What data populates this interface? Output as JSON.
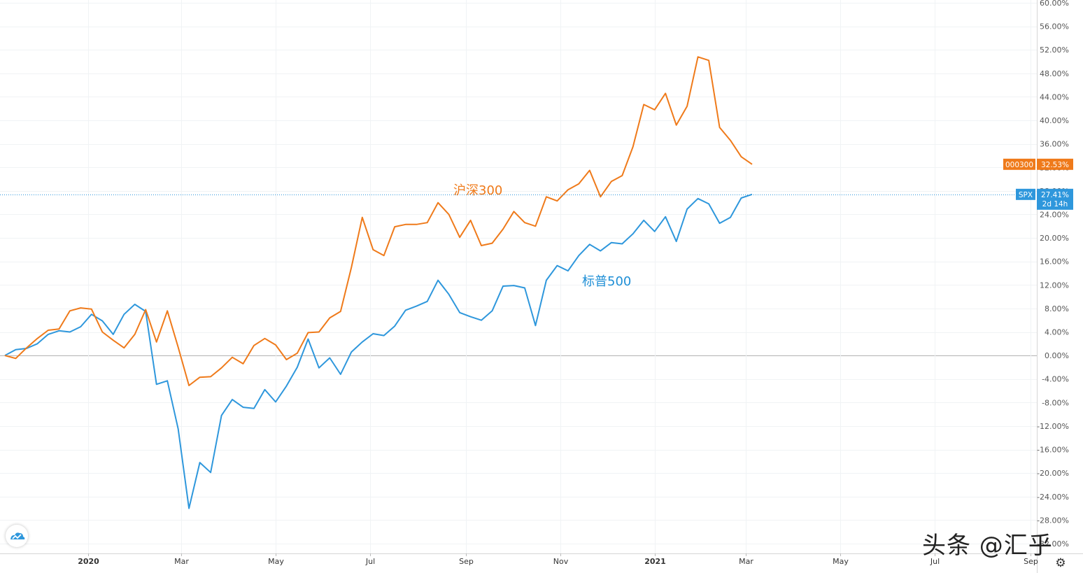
{
  "chart_data": {
    "type": "line",
    "ylim": [
      -30,
      60
    ],
    "yticks": [
      "60.00%",
      "56.00%",
      "52.00%",
      "48.00%",
      "44.00%",
      "40.00%",
      "36.00%",
      "32.00%",
      "28.00%",
      "24.00%",
      "20.00%",
      "16.00%",
      "12.00%",
      "8.00%",
      "4.00%",
      "0.00%",
      "-4.00%",
      "-8.00%",
      "-12.00%",
      "-16.00%",
      "-20.00%",
      "-24.00%",
      "-28.00%",
      "-32.00%"
    ],
    "ytick_values": [
      60,
      56,
      52,
      48,
      44,
      40,
      36,
      32,
      28,
      24,
      20,
      16,
      12,
      8,
      4,
      0,
      -4,
      -8,
      -12,
      -16,
      -20,
      -24,
      -28,
      -32
    ],
    "xticks": [
      {
        "label": "2020",
        "date": "2020-01-01",
        "bold": true
      },
      {
        "label": "Mar",
        "date": "2020-03-01",
        "bold": false
      },
      {
        "label": "May",
        "date": "2020-05-01",
        "bold": false
      },
      {
        "label": "Jul",
        "date": "2020-07-01",
        "bold": false
      },
      {
        "label": "Sep",
        "date": "2020-09-01",
        "bold": false
      },
      {
        "label": "Nov",
        "date": "2020-11-01",
        "bold": false
      },
      {
        "label": "2021",
        "date": "2021-01-01",
        "bold": true
      },
      {
        "label": "Mar",
        "date": "2021-03-01",
        "bold": false
      },
      {
        "label": "May",
        "date": "2021-05-01",
        "bold": false
      },
      {
        "label": "Jul",
        "date": "2021-07-01",
        "bold": false
      },
      {
        "label": "Sep",
        "date": "2021-09-01",
        "bold": false
      }
    ],
    "xrange": [
      "2019-11-08",
      "2021-09-15"
    ],
    "grid": true,
    "series": [
      {
        "name": "沪深300",
        "ticker": "000300",
        "last_value": "32.53%",
        "color": "#ef7a1a",
        "points": [
          [
            "2019-11-08",
            0
          ],
          [
            "2019-11-15",
            -0.5
          ],
          [
            "2019-11-22",
            1.3
          ],
          [
            "2019-11-29",
            2.9
          ],
          [
            "2019-12-06",
            4.3
          ],
          [
            "2019-12-13",
            4.5
          ],
          [
            "2019-12-20",
            7.6
          ],
          [
            "2019-12-27",
            8.1
          ],
          [
            "2020-01-03",
            7.9
          ],
          [
            "2020-01-10",
            4.0
          ],
          [
            "2020-01-17",
            2.6
          ],
          [
            "2020-01-24",
            1.3
          ],
          [
            "2020-01-31",
            3.6
          ],
          [
            "2020-02-07",
            7.8
          ],
          [
            "2020-02-14",
            2.3
          ],
          [
            "2020-02-21",
            7.6
          ],
          [
            "2020-02-28",
            1.4
          ],
          [
            "2020-03-06",
            -5.1
          ],
          [
            "2020-03-13",
            -3.7
          ],
          [
            "2020-03-20",
            -3.6
          ],
          [
            "2020-03-27",
            -2.1
          ],
          [
            "2020-04-03",
            -0.3
          ],
          [
            "2020-04-10",
            -1.4
          ],
          [
            "2020-04-17",
            1.7
          ],
          [
            "2020-04-24",
            2.9
          ],
          [
            "2020-05-01",
            1.8
          ],
          [
            "2020-05-08",
            -0.7
          ],
          [
            "2020-05-15",
            0.4
          ],
          [
            "2020-05-22",
            3.9
          ],
          [
            "2020-05-29",
            4.0
          ],
          [
            "2020-06-05",
            6.4
          ],
          [
            "2020-06-12",
            7.5
          ],
          [
            "2020-06-19",
            15.0
          ],
          [
            "2020-06-26",
            23.5
          ],
          [
            "2020-07-03",
            18.0
          ],
          [
            "2020-07-10",
            17.0
          ],
          [
            "2020-07-17",
            21.9
          ],
          [
            "2020-07-24",
            22.3
          ],
          [
            "2020-07-31",
            22.3
          ],
          [
            "2020-08-07",
            22.6
          ],
          [
            "2020-08-14",
            26.0
          ],
          [
            "2020-08-21",
            24.0
          ],
          [
            "2020-08-28",
            20.1
          ],
          [
            "2020-09-04",
            23.0
          ],
          [
            "2020-09-11",
            18.7
          ],
          [
            "2020-09-18",
            19.1
          ],
          [
            "2020-09-25",
            21.5
          ],
          [
            "2020-10-02",
            24.5
          ],
          [
            "2020-10-09",
            22.6
          ],
          [
            "2020-10-16",
            22.0
          ],
          [
            "2020-10-23",
            27.0
          ],
          [
            "2020-10-30",
            26.3
          ],
          [
            "2020-11-06",
            28.2
          ],
          [
            "2020-11-13",
            29.2
          ],
          [
            "2020-11-20",
            31.5
          ],
          [
            "2020-11-27",
            27.0
          ],
          [
            "2020-12-04",
            29.6
          ],
          [
            "2020-12-11",
            30.6
          ],
          [
            "2020-12-18",
            35.5
          ],
          [
            "2020-12-25",
            42.7
          ],
          [
            "2021-01-01",
            41.8
          ],
          [
            "2021-01-08",
            44.6
          ],
          [
            "2021-01-15",
            39.2
          ],
          [
            "2021-01-22",
            42.4
          ],
          [
            "2021-01-29",
            50.8
          ],
          [
            "2021-02-05",
            50.2
          ],
          [
            "2021-02-12",
            38.8
          ],
          [
            "2021-02-19",
            36.6
          ],
          [
            "2021-02-26",
            33.8
          ],
          [
            "2021-03-05",
            32.53
          ]
        ]
      },
      {
        "name": "标普500",
        "ticker": "SPX",
        "last_value": "27.41%",
        "time_left": "2d 14h",
        "color": "#2e97dc",
        "points": [
          [
            "2019-11-08",
            0
          ],
          [
            "2019-11-15",
            1.0
          ],
          [
            "2019-11-22",
            1.2
          ],
          [
            "2019-11-29",
            2.0
          ],
          [
            "2019-12-06",
            3.6
          ],
          [
            "2019-12-13",
            4.2
          ],
          [
            "2019-12-20",
            4.0
          ],
          [
            "2019-12-27",
            4.9
          ],
          [
            "2020-01-03",
            7.0
          ],
          [
            "2020-01-10",
            5.9
          ],
          [
            "2020-01-17",
            3.6
          ],
          [
            "2020-01-24",
            7.0
          ],
          [
            "2020-01-31",
            8.7
          ],
          [
            "2020-02-07",
            7.5
          ],
          [
            "2020-02-14",
            -4.9
          ],
          [
            "2020-02-21",
            -4.3
          ],
          [
            "2020-02-28",
            -12.5
          ],
          [
            "2020-03-06",
            -26.0
          ],
          [
            "2020-03-13",
            -18.2
          ],
          [
            "2020-03-20",
            -19.9
          ],
          [
            "2020-03-27",
            -10.2
          ],
          [
            "2020-04-03",
            -7.5
          ],
          [
            "2020-04-10",
            -8.8
          ],
          [
            "2020-04-17",
            -9.0
          ],
          [
            "2020-04-24",
            -5.8
          ],
          [
            "2020-05-01",
            -7.9
          ],
          [
            "2020-05-08",
            -5.2
          ],
          [
            "2020-05-15",
            -2.0
          ],
          [
            "2020-05-22",
            2.8
          ],
          [
            "2020-05-29",
            -2.1
          ],
          [
            "2020-06-05",
            -0.4
          ],
          [
            "2020-06-12",
            -3.2
          ],
          [
            "2020-06-19",
            0.6
          ],
          [
            "2020-06-26",
            2.3
          ],
          [
            "2020-07-03",
            3.7
          ],
          [
            "2020-07-10",
            3.4
          ],
          [
            "2020-07-17",
            5.0
          ],
          [
            "2020-07-24",
            7.7
          ],
          [
            "2020-07-31",
            8.4
          ],
          [
            "2020-08-07",
            9.2
          ],
          [
            "2020-08-14",
            12.8
          ],
          [
            "2020-08-21",
            10.4
          ],
          [
            "2020-08-28",
            7.3
          ],
          [
            "2020-09-04",
            6.6
          ],
          [
            "2020-09-11",
            6.0
          ],
          [
            "2020-09-18",
            7.6
          ],
          [
            "2020-09-25",
            11.8
          ],
          [
            "2020-10-02",
            11.9
          ],
          [
            "2020-10-09",
            11.5
          ],
          [
            "2020-10-16",
            5.1
          ],
          [
            "2020-10-23",
            12.8
          ],
          [
            "2020-10-30",
            15.3
          ],
          [
            "2020-11-06",
            14.4
          ],
          [
            "2020-11-13",
            17.0
          ],
          [
            "2020-11-20",
            18.9
          ],
          [
            "2020-11-27",
            17.8
          ],
          [
            "2020-12-04",
            19.2
          ],
          [
            "2020-12-11",
            19.0
          ],
          [
            "2020-12-18",
            20.7
          ],
          [
            "2020-12-25",
            23.0
          ],
          [
            "2021-01-01",
            21.1
          ],
          [
            "2021-01-08",
            23.6
          ],
          [
            "2021-01-15",
            19.4
          ],
          [
            "2021-01-22",
            24.9
          ],
          [
            "2021-01-29",
            26.7
          ],
          [
            "2021-02-05",
            25.8
          ],
          [
            "2021-02-12",
            22.5
          ],
          [
            "2021-02-19",
            23.5
          ],
          [
            "2021-02-26",
            26.8
          ],
          [
            "2021-03-05",
            27.41
          ]
        ]
      }
    ],
    "annotations": [
      {
        "text": "沪深300",
        "series": 0
      },
      {
        "text": "标普500",
        "series": 1
      }
    ]
  },
  "watermark": "头条 @汇乎"
}
